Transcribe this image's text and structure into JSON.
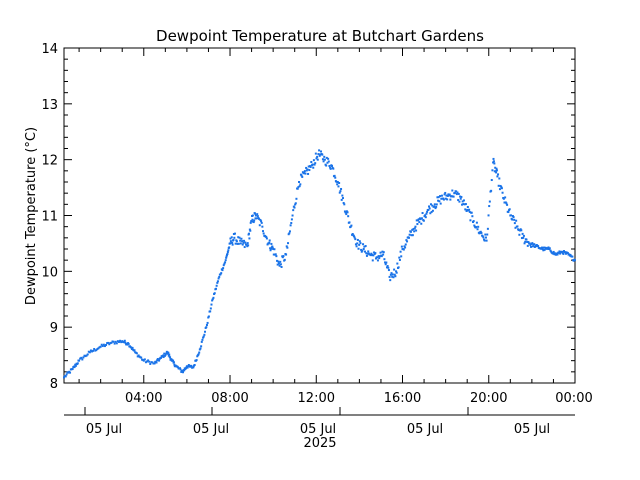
{
  "chart_data": {
    "type": "scatter",
    "title": "Dewpoint Temperature at Butchart Gardens",
    "ylabel": "Dewpoint Temperature (°C)",
    "xlabel": "",
    "ylim": [
      8,
      14
    ],
    "yticks": [
      8,
      9,
      10,
      11,
      12,
      13,
      14
    ],
    "xlim_hours": [
      0.3,
      24
    ],
    "time_ticks": [
      {
        "hour": 4,
        "label": "04:00"
      },
      {
        "hour": 8,
        "label": "08:00"
      },
      {
        "hour": 12,
        "label": "12:00"
      },
      {
        "hour": 16,
        "label": "16:00"
      },
      {
        "hour": 20,
        "label": "20:00"
      },
      {
        "hour": 24,
        "label": "00:00"
      }
    ],
    "date_labels": [
      "05 Jul",
      "05 Jul",
      "05 Jul",
      "05 Jul",
      "05 Jul"
    ],
    "year_label": "2025",
    "marker_color": "#1a73e8",
    "grid": false,
    "series": [
      {
        "x": [
          0.3,
          0.7,
          1.0,
          1.5,
          2.0,
          2.5,
          3.0,
          3.3,
          3.6,
          4.0,
          4.5,
          4.8,
          5.1,
          5.3,
          5.5,
          5.8,
          6.0,
          6.3,
          6.6,
          6.9,
          7.2,
          7.5,
          7.8,
          8.0,
          8.2,
          8.5,
          8.8,
          9.0,
          9.2,
          9.5,
          9.8,
          10.0,
          10.3,
          10.6,
          10.9,
          11.2,
          11.5,
          11.8,
          12.1,
          12.4,
          12.7,
          13.0,
          13.3,
          13.6,
          13.9,
          14.2,
          14.5,
          14.8,
          15.1,
          15.4,
          15.7,
          16.0,
          16.3,
          16.6,
          16.9,
          17.2,
          17.5,
          17.8,
          18.1,
          18.4,
          18.7,
          19.0,
          19.3,
          19.6,
          19.9,
          20.2,
          20.4,
          20.7,
          21.0,
          21.3,
          21.6,
          21.9,
          22.2,
          22.5,
          22.8,
          23.1,
          23.4,
          23.7,
          24.0
        ],
        "y": [
          8.1,
          8.25,
          8.4,
          8.55,
          8.65,
          8.72,
          8.75,
          8.7,
          8.55,
          8.4,
          8.35,
          8.45,
          8.55,
          8.4,
          8.3,
          8.2,
          8.3,
          8.28,
          8.6,
          9.0,
          9.5,
          9.9,
          10.2,
          10.5,
          10.6,
          10.5,
          10.45,
          10.9,
          11.0,
          10.8,
          10.5,
          10.4,
          10.1,
          10.3,
          11.0,
          11.6,
          11.75,
          11.9,
          12.1,
          12.0,
          11.9,
          11.6,
          11.2,
          10.8,
          10.5,
          10.4,
          10.3,
          10.25,
          10.3,
          9.9,
          10.0,
          10.4,
          10.6,
          10.8,
          10.95,
          11.1,
          11.2,
          11.3,
          11.35,
          11.4,
          11.3,
          11.1,
          10.9,
          10.7,
          10.55,
          11.95,
          11.7,
          11.3,
          11.0,
          10.8,
          10.6,
          10.5,
          10.45,
          10.4,
          10.4,
          10.3,
          10.35,
          10.3,
          10.2
        ]
      }
    ]
  }
}
